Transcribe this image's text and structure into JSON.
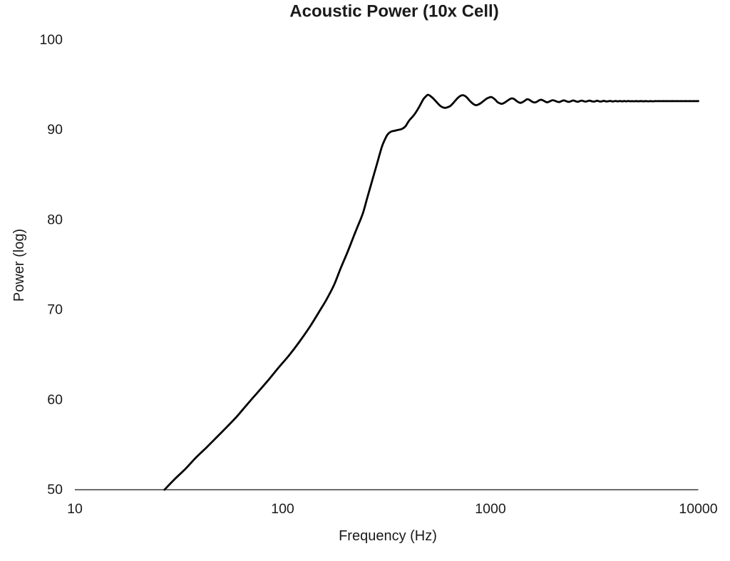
{
  "title": "Acoustic Power (10x Cell)",
  "chart_data": {
    "type": "line",
    "title": "Acoustic Power (10x Cell)",
    "xlabel": "Frequency (Hz)",
    "ylabel": "Power (log)",
    "x_scale": "log",
    "y_scale": "linear",
    "xlim": [
      10,
      10000
    ],
    "ylim": [
      50,
      100
    ],
    "x_ticks": [
      10,
      100,
      1000,
      10000
    ],
    "x_tick_labels": [
      "10",
      "100",
      "1000",
      "10000"
    ],
    "y_ticks": [
      50,
      60,
      70,
      80,
      90,
      100
    ],
    "y_tick_labels": [
      "50",
      "60",
      "70",
      "80",
      "90",
      "100"
    ],
    "grid": false,
    "legend": null,
    "colors": {
      "line": "#000000",
      "axis": "#3c3c3c",
      "text": "#1a1a1a",
      "background": "#ffffff"
    },
    "notes": "Single black curve; rises from (27 Hz, 50) with steepening slope, shelf near 90 around 320-375 Hz, peak 93.9 at 500 Hz, ripples every ~250 Hz decaying to asymptote ~93.2; only a bottom x-axis line is drawn (no frame, no gridlines).",
    "series": [
      {
        "name": "Acoustic Power",
        "points": [
          [
            27,
            50.0
          ],
          [
            30,
            51.1
          ],
          [
            34,
            52.3
          ],
          [
            38,
            53.5
          ],
          [
            43,
            54.7
          ],
          [
            48,
            55.8
          ],
          [
            54,
            57.0
          ],
          [
            60,
            58.1
          ],
          [
            67,
            59.4
          ],
          [
            75,
            60.7
          ],
          [
            84,
            62.0
          ],
          [
            95,
            63.5
          ],
          [
            107,
            64.9
          ],
          [
            120,
            66.4
          ],
          [
            135,
            68.1
          ],
          [
            150,
            69.8
          ],
          [
            163,
            71.2
          ],
          [
            177,
            72.8
          ],
          [
            190,
            74.6
          ],
          [
            205,
            76.4
          ],
          [
            220,
            78.2
          ],
          [
            230,
            79.3
          ],
          [
            243,
            80.7
          ],
          [
            255,
            82.4
          ],
          [
            270,
            84.4
          ],
          [
            285,
            86.3
          ],
          [
            300,
            88.1
          ],
          [
            310,
            88.9
          ],
          [
            320,
            89.5
          ],
          [
            332,
            89.8
          ],
          [
            345,
            89.9
          ],
          [
            360,
            90.0
          ],
          [
            375,
            90.1
          ],
          [
            390,
            90.4
          ],
          [
            405,
            91.0
          ],
          [
            430,
            91.7
          ],
          [
            455,
            92.6
          ],
          [
            475,
            93.4
          ],
          [
            490,
            93.75
          ],
          [
            500,
            93.9
          ],
          [
            515,
            93.75
          ],
          [
            530,
            93.5
          ],
          [
            545,
            93.2
          ],
          [
            560,
            92.9
          ],
          [
            575,
            92.65
          ],
          [
            590,
            92.5
          ],
          [
            605,
            92.45
          ],
          [
            620,
            92.5
          ],
          [
            640,
            92.65
          ],
          [
            660,
            92.95
          ],
          [
            680,
            93.3
          ],
          [
            700,
            93.6
          ],
          [
            720,
            93.8
          ],
          [
            735,
            93.85
          ],
          [
            750,
            93.8
          ],
          [
            770,
            93.6
          ],
          [
            790,
            93.3
          ],
          [
            810,
            93.05
          ],
          [
            830,
            92.85
          ],
          [
            850,
            92.75
          ],
          [
            870,
            92.8
          ],
          [
            895,
            92.95
          ],
          [
            925,
            93.2
          ],
          [
            955,
            93.45
          ],
          [
            985,
            93.6
          ],
          [
            1008,
            93.65
          ],
          [
            1030,
            93.55
          ],
          [
            1055,
            93.35
          ],
          [
            1080,
            93.1
          ],
          [
            1110,
            92.95
          ],
          [
            1135,
            92.9
          ],
          [
            1165,
            93.0
          ],
          [
            1200,
            93.2
          ],
          [
            1235,
            93.4
          ],
          [
            1265,
            93.5
          ],
          [
            1295,
            93.45
          ],
          [
            1330,
            93.25
          ],
          [
            1360,
            93.1
          ],
          [
            1395,
            93.0
          ],
          [
            1430,
            93.1
          ],
          [
            1465,
            93.25
          ],
          [
            1500,
            93.4
          ],
          [
            1535,
            93.35
          ],
          [
            1570,
            93.2
          ],
          [
            1605,
            93.08
          ],
          [
            1640,
            93.05
          ],
          [
            1680,
            93.15
          ],
          [
            1720,
            93.3
          ],
          [
            1755,
            93.35
          ],
          [
            1790,
            93.28
          ],
          [
            1830,
            93.15
          ],
          [
            1870,
            93.07
          ],
          [
            1910,
            93.12
          ],
          [
            1960,
            93.25
          ],
          [
            2000,
            93.3
          ],
          [
            2050,
            93.22
          ],
          [
            2100,
            93.12
          ],
          [
            2150,
            93.1
          ],
          [
            2200,
            93.2
          ],
          [
            2250,
            93.28
          ],
          [
            2300,
            93.22
          ],
          [
            2350,
            93.13
          ],
          [
            2400,
            93.12
          ],
          [
            2450,
            93.2
          ],
          [
            2500,
            93.27
          ],
          [
            2550,
            93.21
          ],
          [
            2600,
            93.14
          ],
          [
            2650,
            93.14
          ],
          [
            2700,
            93.21
          ],
          [
            2750,
            93.26
          ],
          [
            2800,
            93.2
          ],
          [
            2850,
            93.15
          ],
          [
            2900,
            93.16
          ],
          [
            2950,
            93.22
          ],
          [
            3000,
            93.25
          ],
          [
            3060,
            93.19
          ],
          [
            3120,
            93.15
          ],
          [
            3190,
            93.17
          ],
          [
            3250,
            93.24
          ],
          [
            3310,
            93.2
          ],
          [
            3370,
            93.15
          ],
          [
            3440,
            93.17
          ],
          [
            3500,
            93.23
          ],
          [
            3560,
            93.19
          ],
          [
            3630,
            93.16
          ],
          [
            3690,
            93.18
          ],
          [
            3750,
            93.22
          ],
          [
            3810,
            93.19
          ],
          [
            3880,
            93.16
          ],
          [
            3940,
            93.18
          ],
          [
            4000,
            93.22
          ],
          [
            4100,
            93.17
          ],
          [
            4200,
            93.21
          ],
          [
            4300,
            93.17
          ],
          [
            4400,
            93.21
          ],
          [
            4500,
            93.17
          ],
          [
            4600,
            93.21
          ],
          [
            4700,
            93.18
          ],
          [
            4800,
            93.2
          ],
          [
            4900,
            93.18
          ],
          [
            5000,
            93.2
          ],
          [
            5150,
            93.18
          ],
          [
            5300,
            93.2
          ],
          [
            5450,
            93.18
          ],
          [
            5600,
            93.2
          ],
          [
            5750,
            93.18
          ],
          [
            5900,
            93.2
          ],
          [
            6050,
            93.18
          ],
          [
            6200,
            93.2
          ],
          [
            6350,
            93.19
          ],
          [
            6500,
            93.2
          ],
          [
            6650,
            93.19
          ],
          [
            6800,
            93.2
          ],
          [
            6950,
            93.19
          ],
          [
            7100,
            93.2
          ],
          [
            7300,
            93.19
          ],
          [
            7500,
            93.2
          ],
          [
            7700,
            93.19
          ],
          [
            7900,
            93.2
          ],
          [
            8100,
            93.19
          ],
          [
            8300,
            93.2
          ],
          [
            8500,
            93.19
          ],
          [
            8700,
            93.2
          ],
          [
            8900,
            93.19
          ],
          [
            9100,
            93.2
          ],
          [
            9300,
            93.19
          ],
          [
            9500,
            93.2
          ],
          [
            9750,
            93.19
          ],
          [
            10000,
            93.2
          ]
        ]
      }
    ]
  }
}
